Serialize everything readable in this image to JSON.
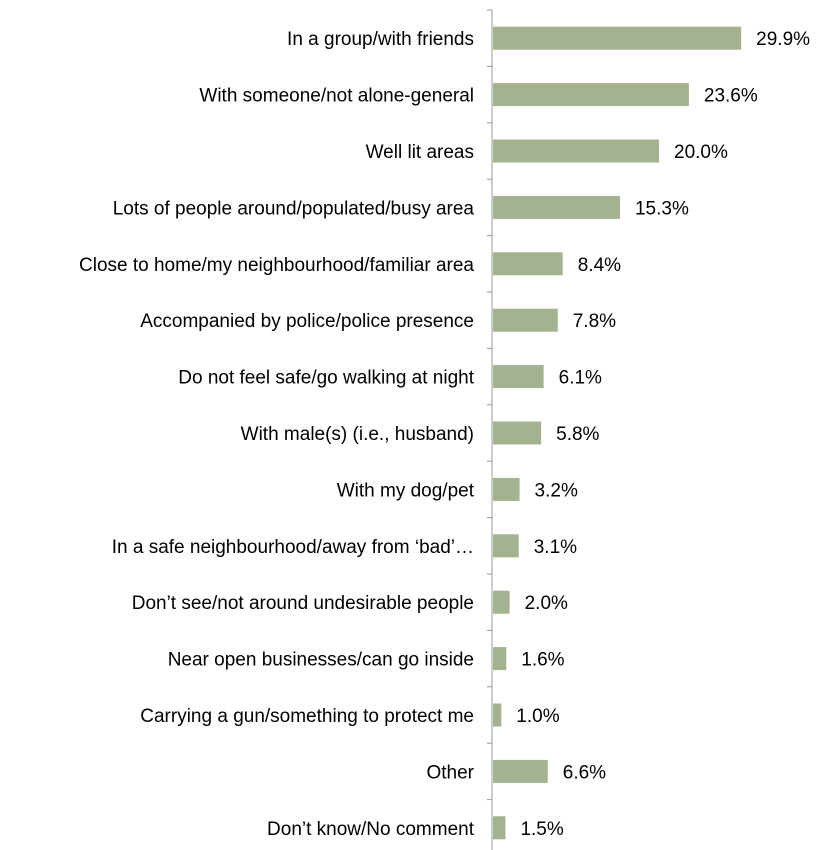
{
  "chart_data": {
    "type": "bar",
    "orientation": "horizontal",
    "categories": [
      "In a group/with friends",
      "With someone/not alone-general",
      "Well lit areas",
      "Lots of people around/populated/busy area",
      "Close to home/my neighbourhood/familiar area",
      "Accompanied by police/police presence",
      "Do not feel safe/go walking at night",
      "With male(s) (i.e., husband)",
      "With my dog/pet",
      "In a safe neighbourhood/away from ‘bad’…",
      "Don’t see/not around undesirable people",
      "Near open businesses/can go inside",
      "Carrying a gun/something to protect me",
      "Other",
      "Don’t know/No comment"
    ],
    "values": [
      29.9,
      23.6,
      20.0,
      15.3,
      8.4,
      7.8,
      6.1,
      5.8,
      3.2,
      3.1,
      2.0,
      1.6,
      1.0,
      6.6,
      1.5
    ],
    "value_labels": [
      "29.9%",
      "23.6%",
      "20.0%",
      "15.3%",
      "8.4%",
      "7.8%",
      "6.1%",
      "5.8%",
      "3.2%",
      "3.1%",
      "2.0%",
      "1.6%",
      "1.0%",
      "6.6%",
      "1.5%"
    ],
    "title": "",
    "xlabel": "",
    "ylabel": "",
    "xlim": [
      0,
      35
    ],
    "grid": false,
    "legend": "none",
    "bar_color": "#a3b38f"
  }
}
